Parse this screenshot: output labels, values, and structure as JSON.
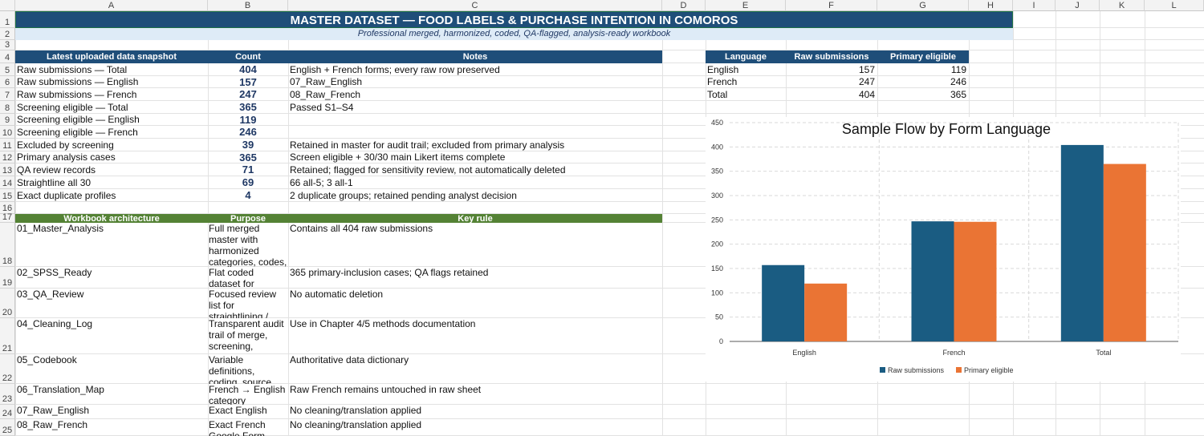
{
  "columns": [
    "A",
    "B",
    "C",
    "D",
    "E",
    "F",
    "G",
    "H",
    "I",
    "J",
    "K",
    "L"
  ],
  "rows": [
    "1",
    "2",
    "3",
    "4",
    "5",
    "6",
    "7",
    "8",
    "9",
    "10",
    "11",
    "12",
    "13",
    "14",
    "15",
    "16",
    "17",
    "18",
    "19",
    "20",
    "21",
    "22",
    "23",
    "24",
    "25"
  ],
  "title": "MASTER DATASET — FOOD LABELS & PURCHASE INTENTION IN COMOROS",
  "subtitle": "Professional merged, harmonized, coded, QA-flagged, analysis-ready workbook",
  "snapshot": {
    "headers": [
      "Latest uploaded data snapshot",
      "Count",
      "Notes"
    ],
    "rows": [
      {
        "label": "Raw submissions — Total",
        "count": "404",
        "note": "English + French forms; every raw row preserved"
      },
      {
        "label": "Raw submissions — English",
        "count": "157",
        "note": "07_Raw_English"
      },
      {
        "label": "Raw submissions — French",
        "count": "247",
        "note": "08_Raw_French"
      },
      {
        "label": "Screening eligible — Total",
        "count": "365",
        "note": "Passed S1–S4"
      },
      {
        "label": "Screening eligible — English",
        "count": "119",
        "note": ""
      },
      {
        "label": "Screening eligible — French",
        "count": "246",
        "note": ""
      },
      {
        "label": "Excluded by screening",
        "count": "39",
        "note": "Retained in master for audit trail; excluded from primary analysis"
      },
      {
        "label": "Primary analysis cases",
        "count": "365",
        "note": "Screen eligible + 30/30 main Likert items complete"
      },
      {
        "label": "QA review records",
        "count": "71",
        "note": "Retained; flagged for sensitivity review, not automatically deleted"
      },
      {
        "label": "Straightline all 30",
        "count": "69",
        "note": "66 all-5; 3 all-1"
      },
      {
        "label": "Exact duplicate profiles",
        "count": "4",
        "note": "2 duplicate groups; retained pending analyst decision"
      }
    ]
  },
  "architecture": {
    "headers": [
      "Workbook architecture",
      "Purpose",
      "Key rule"
    ],
    "rows": [
      {
        "sheet": "01_Master_Analysis",
        "purpose": "Full merged master with harmonized categories, codes,",
        "rule": "Contains all 404 raw submissions"
      },
      {
        "sheet": "02_SPSS_Ready",
        "purpose": "Flat coded dataset for statistical",
        "rule": "365 primary-inclusion cases; QA flags retained"
      },
      {
        "sheet": "03_QA_Review",
        "purpose": "Focused review list for straightlining /",
        "rule": "No automatic deletion"
      },
      {
        "sheet": "04_Cleaning_Log",
        "purpose": "Transparent audit trail of merge, screening,",
        "rule": "Use in Chapter 4/5 methods documentation"
      },
      {
        "sheet": "05_Codebook",
        "purpose": "Variable definitions, coding, source questions",
        "rule": "Authoritative data dictionary"
      },
      {
        "sheet": "06_Translation_Map",
        "purpose": "French → English category",
        "rule": "Raw French remains untouched in raw sheet"
      },
      {
        "sheet": "07_Raw_English",
        "purpose": "Exact English",
        "rule": "No cleaning/translation applied"
      },
      {
        "sheet": "08_Raw_French",
        "purpose": "Exact French Google Form",
        "rule": "No cleaning/translation applied"
      }
    ]
  },
  "language_table": {
    "headers": [
      "Language",
      "Raw submissions",
      "Primary eligible"
    ],
    "rows": [
      {
        "language": "English",
        "raw": "157",
        "eligible": "119"
      },
      {
        "language": "French",
        "raw": "247",
        "eligible": "246"
      },
      {
        "language": "Total",
        "raw": "404",
        "eligible": "365"
      }
    ]
  },
  "colors": {
    "navy": "#1f4e79",
    "green": "#548235",
    "raw_series": "#1a5c82",
    "eligible_series": "#ea7434"
  },
  "chart_data": {
    "type": "bar",
    "title": "Sample Flow by Form Language",
    "categories": [
      "English",
      "French",
      "Total"
    ],
    "series": [
      {
        "name": "Raw submissions",
        "values": [
          157,
          247,
          404
        ],
        "color": "#1a5c82"
      },
      {
        "name": "Primary eligible",
        "values": [
          119,
          246,
          365
        ],
        "color": "#ea7434"
      }
    ],
    "ylim": [
      0,
      450
    ],
    "yticks": [
      "0",
      "50",
      "100",
      "150",
      "200",
      "250",
      "300",
      "350",
      "400",
      "450"
    ],
    "grid": true,
    "legend": "bottom"
  }
}
